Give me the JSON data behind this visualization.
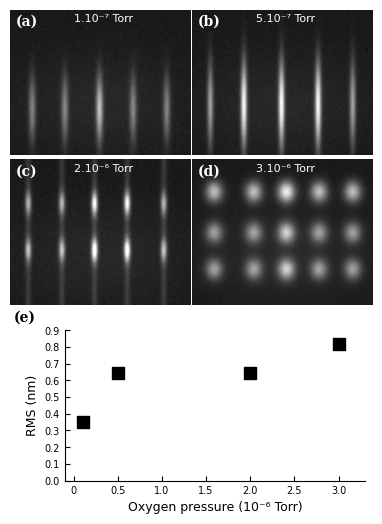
{
  "scatter_x": [
    0.1,
    0.5,
    2.0,
    3.0
  ],
  "scatter_y": [
    0.35,
    0.645,
    0.645,
    0.82
  ],
  "xlabel": "Oxygen pressure (10⁻⁶ Torr)",
  "ylabel": "RMS (nm)",
  "xlim": [
    -0.1,
    3.3
  ],
  "ylim": [
    0.0,
    0.9
  ],
  "yticks": [
    0.0,
    0.1,
    0.2,
    0.3,
    0.4,
    0.5,
    0.6,
    0.7,
    0.8,
    0.9
  ],
  "xticks": [
    0.0,
    0.5,
    1.0,
    1.5,
    2.0,
    2.5,
    3.0
  ],
  "panel_labels": [
    "(a)",
    "(b)",
    "(c)",
    "(d)",
    "(e)"
  ],
  "panel_a_label": "1.10⁻⁷ Torr",
  "panel_b_label": "5.10⁻⁷ Torr",
  "panel_c_label": "2.10⁻⁶ Torr",
  "panel_d_label": "3.10⁻⁶ Torr",
  "marker_color": "black",
  "marker_size": 7,
  "label_fontsize": 9,
  "tick_fontsize": 7,
  "pressure_fontsize": 8,
  "panel_letter_fontsize": 10
}
